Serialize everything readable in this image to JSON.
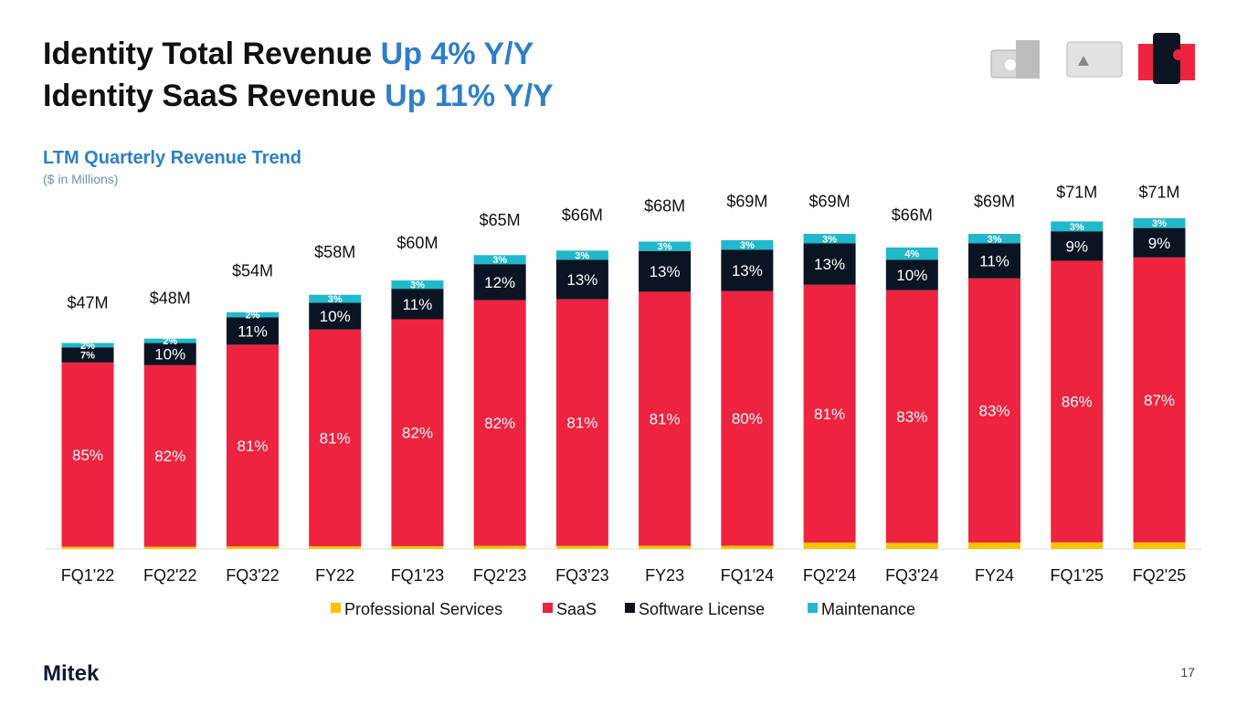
{
  "slide": {
    "title_line1_a": "Identity Total Revenue",
    "title_line1_b": "Up 4% Y/Y",
    "title_line2_a": "Identity SaaS Revenue",
    "title_line2_b": "Up 11% Y/Y",
    "logo": "Mitek",
    "page_number": "17"
  },
  "chart_data": {
    "type": "stacked_bar",
    "title": "LTM Quarterly Revenue Trend",
    "subtitle": "($ in Millions)",
    "categories": [
      "FQ1'22",
      "FQ2'22",
      "FQ3'22",
      "FY22",
      "FQ1'23",
      "FQ2'23",
      "FQ3'23",
      "FY23",
      "FQ1'24",
      "FQ2'24",
      "FQ3'24",
      "FY24",
      "FQ1'25",
      "FQ2'25"
    ],
    "totals": {
      "values": [
        47,
        48,
        54,
        58,
        60,
        65,
        66,
        68,
        69,
        69,
        66,
        69,
        71,
        71
      ],
      "value_labels": [
        "$47M",
        "$48M",
        "$54M",
        "$58M",
        "$60M",
        "$65M",
        "$66M",
        "$68M",
        "$69M",
        "$69M",
        "$66M",
        "$69M",
        "$71M",
        "$71M"
      ]
    },
    "series": [
      {
        "name": "Professional Services",
        "color": "#f5c400",
        "values": [
          1,
          1,
          1,
          1,
          1,
          1,
          1,
          1,
          1,
          2,
          2,
          2,
          2,
          2
        ]
      },
      {
        "name": "SaaS",
        "color": "#ee2340",
        "values": [
          85,
          82,
          81,
          81,
          82,
          82,
          81,
          81,
          80,
          81,
          83,
          83,
          86,
          87
        ],
        "value_labels": [
          "85%",
          "82%",
          "81%",
          "81%",
          "82%",
          "82%",
          "81%",
          "81%",
          "80%",
          "81%",
          "83%",
          "83%",
          "86%",
          "87%"
        ]
      },
      {
        "name": "Software License",
        "color": "#0b1423",
        "values": [
          7,
          10,
          11,
          10,
          11,
          12,
          13,
          13,
          13,
          13,
          10,
          11,
          9,
          9
        ],
        "value_labels": [
          "7%",
          "10%",
          "11%",
          "10%",
          "11%",
          "12%",
          "13%",
          "13%",
          "13%",
          "13%",
          "10%",
          "11%",
          "9%",
          "9%"
        ]
      },
      {
        "name": "Maintenance",
        "color": "#22b8cc",
        "values": [
          2,
          2,
          2,
          3,
          3,
          3,
          3,
          3,
          3,
          3,
          4,
          3,
          3,
          3
        ],
        "value_labels": [
          "2%",
          "2%",
          "2%",
          "3%",
          "3%",
          "3%",
          "3%",
          "3%",
          "3%",
          "3%",
          "4%",
          "3%",
          "3%",
          "3%"
        ]
      }
    ],
    "legend": "bottom"
  }
}
